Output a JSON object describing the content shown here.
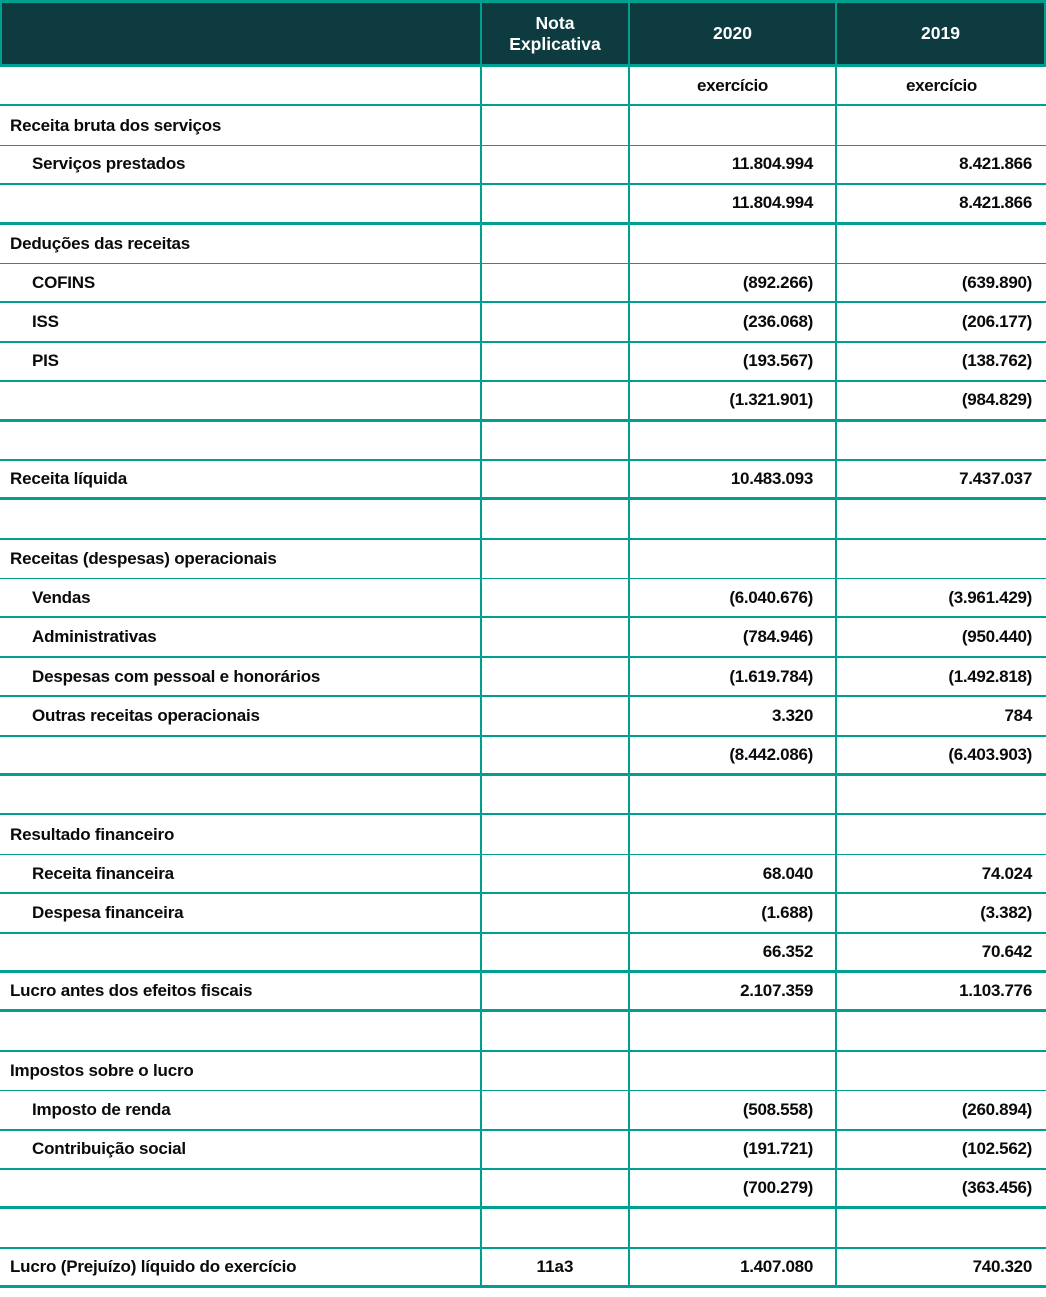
{
  "colors": {
    "border_teal": "#00a090",
    "header_background": "#0d3b40",
    "header_text": "#ffffff",
    "body_text": "#0a0a0a"
  },
  "header": {
    "label_col": "",
    "note_col": "Nota\nExplicativa",
    "col_2020": "2020",
    "col_2019": "2019"
  },
  "subheader": {
    "v2020": "exercício",
    "v2019": "exercício"
  },
  "rows": [
    {
      "type": "section",
      "label": "Receita bruta dos serviços",
      "note": "",
      "v2020": "",
      "v2019": ""
    },
    {
      "type": "detail",
      "label": "Serviços prestados",
      "note": "",
      "v2020": "11.804.994",
      "v2019": "8.421.866"
    },
    {
      "type": "total",
      "label": "",
      "note": "",
      "v2020": "11.804.994",
      "v2019": "8.421.866"
    },
    {
      "type": "section",
      "label": "Deduções das receitas",
      "note": "",
      "v2020": "",
      "v2019": ""
    },
    {
      "type": "detail",
      "label": "COFINS",
      "note": "",
      "v2020": "(892.266)",
      "v2019": "(639.890)"
    },
    {
      "type": "detail",
      "label": "ISS",
      "note": "",
      "v2020": "(236.068)",
      "v2019": "(206.177)"
    },
    {
      "type": "detail",
      "label": "PIS",
      "note": "",
      "v2020": "(193.567)",
      "v2019": "(138.762)"
    },
    {
      "type": "total",
      "label": "",
      "note": "",
      "v2020": "(1.321.901)",
      "v2019": "(984.829)"
    },
    {
      "type": "blank",
      "label": "",
      "note": "",
      "v2020": "",
      "v2019": ""
    },
    {
      "type": "section-values",
      "label": "Receita líquida",
      "note": "",
      "v2020": "10.483.093",
      "v2019": "7.437.037"
    },
    {
      "type": "blank",
      "label": "",
      "note": "",
      "v2020": "",
      "v2019": ""
    },
    {
      "type": "section",
      "label": "Receitas (despesas) operacionais",
      "note": "",
      "v2020": "",
      "v2019": ""
    },
    {
      "type": "detail",
      "label": "Vendas",
      "note": "",
      "v2020": "(6.040.676)",
      "v2019": "(3.961.429)"
    },
    {
      "type": "detail",
      "label": "Administrativas",
      "note": "",
      "v2020": "(784.946)",
      "v2019": "(950.440)"
    },
    {
      "type": "detail",
      "label": "Despesas com pessoal e honorários",
      "note": "",
      "v2020": "(1.619.784)",
      "v2019": "(1.492.818)"
    },
    {
      "type": "detail",
      "label": "Outras receitas operacionais",
      "note": "",
      "v2020": "3.320",
      "v2019": "784"
    },
    {
      "type": "total",
      "label": "",
      "note": "",
      "v2020": "(8.442.086)",
      "v2019": "(6.403.903)"
    },
    {
      "type": "blank",
      "label": "",
      "note": "",
      "v2020": "",
      "v2019": ""
    },
    {
      "type": "section",
      "label": "Resultado financeiro",
      "note": "",
      "v2020": "",
      "v2019": ""
    },
    {
      "type": "detail",
      "label": "Receita financeira",
      "note": "",
      "v2020": "68.040",
      "v2019": "74.024"
    },
    {
      "type": "detail",
      "label": "Despesa financeira",
      "note": "",
      "v2020": "(1.688)",
      "v2019": "(3.382)"
    },
    {
      "type": "total",
      "label": "",
      "note": "",
      "v2020": "66.352",
      "v2019": "70.642"
    },
    {
      "type": "section-values",
      "label": "Lucro antes dos efeitos fiscais",
      "note": "",
      "v2020": "2.107.359",
      "v2019": "1.103.776"
    },
    {
      "type": "blank",
      "label": "",
      "note": "",
      "v2020": "",
      "v2019": ""
    },
    {
      "type": "section",
      "label": "Impostos sobre o lucro",
      "note": "",
      "v2020": "",
      "v2019": ""
    },
    {
      "type": "detail",
      "label": "Imposto de renda",
      "note": "",
      "v2020": "(508.558)",
      "v2019": "(260.894)"
    },
    {
      "type": "detail",
      "label": "Contribuição social",
      "note": "",
      "v2020": "(191.721)",
      "v2019": "(102.562)"
    },
    {
      "type": "total",
      "label": "",
      "note": "",
      "v2020": "(700.279)",
      "v2019": "(363.456)"
    },
    {
      "type": "blank",
      "label": "",
      "note": "",
      "v2020": "",
      "v2019": ""
    },
    {
      "type": "grand",
      "label": "Lucro (Prejuízo) líquido do exercício",
      "note": "11a3",
      "v2020": "1.407.080",
      "v2019": "740.320"
    }
  ]
}
